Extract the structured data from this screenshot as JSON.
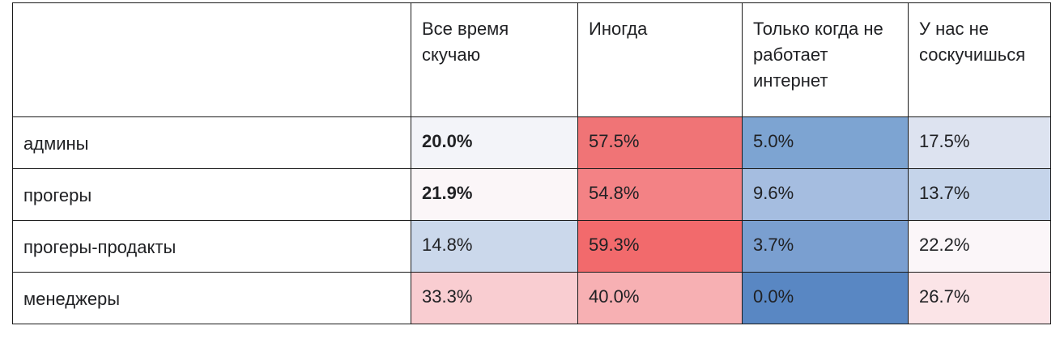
{
  "chart_data": {
    "type": "heatmap",
    "columns": [
      "Все время скучаю",
      "Иногда",
      "Только когда не работает интернет",
      "У нас не соскучишься"
    ],
    "rows": [
      {
        "label": "админы",
        "values": [
          "20.0%",
          "57.5%",
          "5.0%",
          "17.5%"
        ],
        "numbers": [
          20.0,
          57.5,
          5.0,
          17.5
        ],
        "bold": [
          true,
          false,
          false,
          false
        ],
        "colors": [
          "#f3f4f9",
          "#f07476",
          "#7da4d2",
          "#dde3f0"
        ]
      },
      {
        "label": "прогеры",
        "values": [
          "21.9%",
          "54.8%",
          "9.6%",
          "13.7%"
        ],
        "numbers": [
          21.9,
          54.8,
          9.6,
          13.7
        ],
        "bold": [
          true,
          false,
          false,
          false
        ],
        "colors": [
          "#fbf6f8",
          "#f38285",
          "#a5bde0",
          "#c5d4ea"
        ]
      },
      {
        "label": "прогеры-продакты",
        "values": [
          "14.8%",
          "59.3%",
          "3.7%",
          "22.2%"
        ],
        "numbers": [
          14.8,
          59.3,
          3.7,
          22.2
        ],
        "bold": [
          false,
          false,
          false,
          false
        ],
        "colors": [
          "#cbd8eb",
          "#f26a6c",
          "#7a9fd0",
          "#fbf6f9"
        ]
      },
      {
        "label": "менеджеры",
        "values": [
          "33.3%",
          "40.0%",
          "0.0%",
          "26.7%"
        ],
        "numbers": [
          33.3,
          40.0,
          0.0,
          26.7
        ],
        "bold": [
          false,
          false,
          false,
          false
        ],
        "colors": [
          "#f9cdd1",
          "#f7b0b3",
          "#5987c3",
          "#fbe4e7"
        ]
      }
    ]
  }
}
